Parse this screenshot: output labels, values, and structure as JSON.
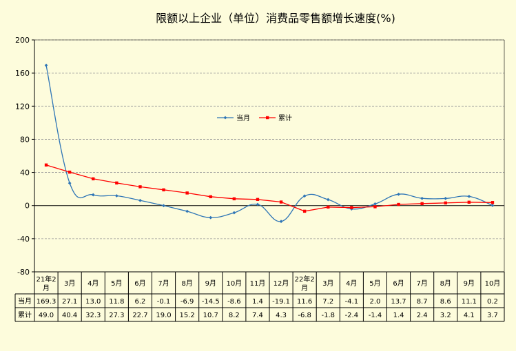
{
  "chart_data": {
    "type": "line",
    "title": "限额以上企业（单位）消费品零售额增长速度(%)",
    "xlabel": "",
    "ylabel": "",
    "ylim": [
      -80,
      200
    ],
    "yticks": [
      "200",
      "160",
      "120",
      "80",
      "40",
      "0",
      "-40",
      "-80"
    ],
    "grid": true,
    "legend_position": "center",
    "categories": [
      "21年2月",
      "3月",
      "4月",
      "5月",
      "6月",
      "7月",
      "8月",
      "9月",
      "10月",
      "11月",
      "12月",
      "22年2月",
      "3月",
      "4月",
      "5月",
      "6月",
      "7月",
      "8月",
      "9月",
      "10月"
    ],
    "series": [
      {
        "name": "当月",
        "color": "#2e75b6",
        "smooth": true,
        "values": [
          169.3,
          27.1,
          13.0,
          11.8,
          6.2,
          -0.1,
          -6.9,
          -14.5,
          -8.6,
          1.4,
          -19.1,
          11.6,
          7.2,
          -4.1,
          2.0,
          13.7,
          8.7,
          8.6,
          11.1,
          0.2
        ],
        "labels": [
          "169.3",
          "27.1",
          "13.0",
          "11.8",
          "6.2",
          "-0.1",
          "-6.9",
          "-14.5",
          "-8.6",
          "1.4",
          "-19.1",
          "11.6",
          "7.2",
          "-4.1",
          "2.0",
          "13.7",
          "8.7",
          "8.6",
          "11.1",
          "0.2"
        ]
      },
      {
        "name": "累计",
        "color": "#ff0000",
        "smooth": false,
        "values": [
          49.0,
          40.4,
          32.3,
          27.3,
          22.7,
          19.0,
          15.2,
          10.7,
          8.2,
          7.4,
          4.3,
          -6.8,
          -1.8,
          -2.4,
          -1.4,
          1.4,
          2.4,
          3.2,
          4.1,
          3.7
        ],
        "labels": [
          "49.0",
          "40.4",
          "32.3",
          "27.3",
          "22.7",
          "19.0",
          "15.2",
          "10.7",
          "8.2",
          "7.4",
          "4.3",
          "-6.8",
          "-1.8",
          "-2.4",
          "-1.4",
          "1.4",
          "2.4",
          "3.2",
          "4.1",
          "3.7"
        ]
      }
    ]
  },
  "colors": {
    "background": "#fdfcdc",
    "grid": "#999999",
    "axis": "#000000"
  }
}
